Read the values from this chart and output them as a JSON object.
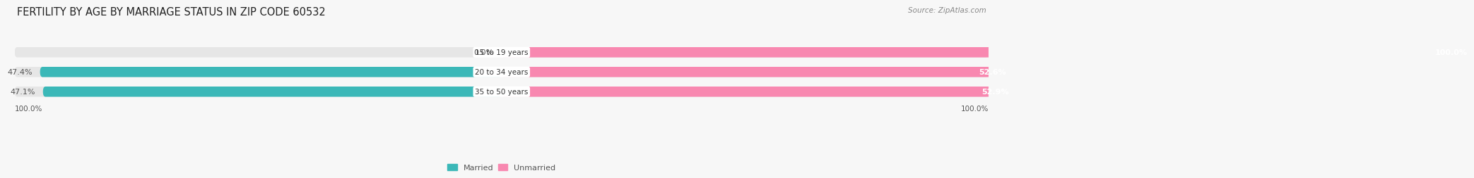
{
  "title": "FERTILITY BY AGE BY MARRIAGE STATUS IN ZIP CODE 60532",
  "source": "Source: ZipAtlas.com",
  "categories": [
    "15 to 19 years",
    "20 to 34 years",
    "35 to 50 years"
  ],
  "married": [
    0.0,
    47.4,
    47.1
  ],
  "unmarried": [
    100.0,
    52.6,
    52.9
  ],
  "married_color": "#3bb8b8",
  "unmarried_color": "#f888b0",
  "label_color": "#555555",
  "background_color": "#f7f7f7",
  "bar_bg_color": "#e6e6e6",
  "title_fontsize": 10.5,
  "source_fontsize": 7.5,
  "value_fontsize": 8,
  "cat_fontsize": 7.5,
  "axis_tick_fontsize": 7.5
}
